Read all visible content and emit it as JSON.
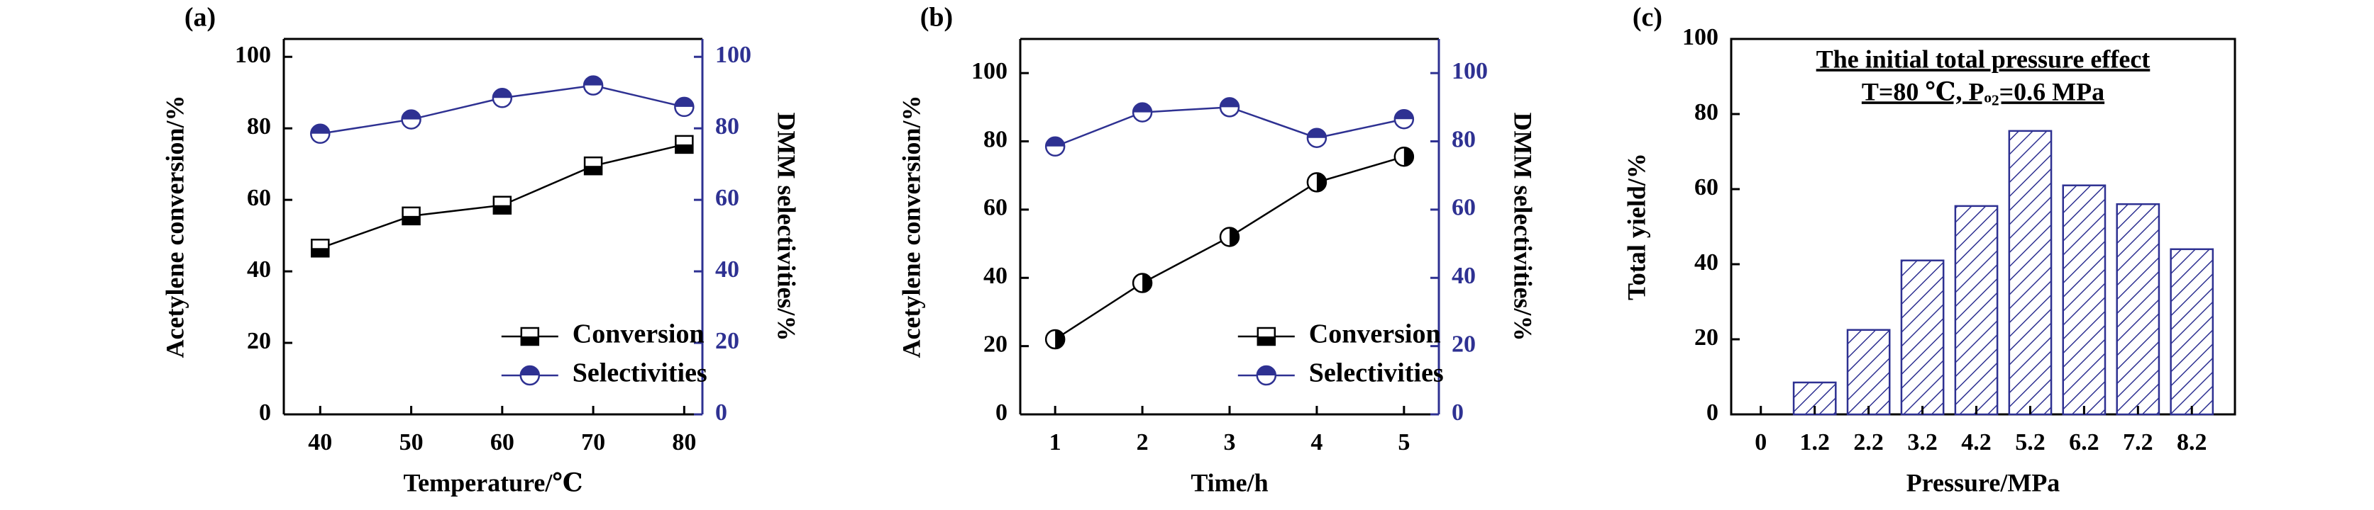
{
  "colors": {
    "black": "#000000",
    "blue": "#2e3192",
    "hatch": "#2e3192",
    "bar_fill": "#ffffff"
  },
  "chart_data": [
    {
      "type": "line",
      "panel_label": "(a)",
      "xlabel": "Temperature/℃",
      "ylabel": "Acetylene conversion/%",
      "y2label": "DMM selectivities/%",
      "x": [
        40,
        50,
        60,
        70,
        80
      ],
      "xticks": [
        "40",
        "50",
        "60",
        "70",
        "80"
      ],
      "xlim": [
        36,
        82
      ],
      "ylim": [
        0,
        105
      ],
      "yticks": [
        "0",
        "20",
        "40",
        "60",
        "80",
        "100"
      ],
      "y2lim": [
        0,
        105
      ],
      "y2ticks": [
        "0",
        "20",
        "40",
        "60",
        "80",
        "100"
      ],
      "series": [
        {
          "name": "Conversion",
          "axis": "left",
          "marker": "half-square",
          "values": [
            46.5,
            55.5,
            58.5,
            69.5,
            75.5
          ]
        },
        {
          "name": "Selectivities",
          "axis": "right",
          "marker": "half-circle",
          "values": [
            78.5,
            82.5,
            88.5,
            92,
            86
          ]
        }
      ],
      "legend": "bottom-right",
      "grid": false
    },
    {
      "type": "line",
      "panel_label": "(b)",
      "xlabel": "Time/h",
      "ylabel": "Acetylene conversion/%",
      "y2label": "DMM selectivities/%",
      "x": [
        1,
        2,
        3,
        4,
        5
      ],
      "xticks": [
        "1",
        "2",
        "3",
        "4",
        "5"
      ],
      "xlim": [
        0.6,
        5.4
      ],
      "ylim": [
        0,
        110
      ],
      "yticks": [
        "0",
        "20",
        "40",
        "60",
        "80",
        "100"
      ],
      "y2lim": [
        0,
        110
      ],
      "y2ticks": [
        "0",
        "20",
        "40",
        "60",
        "80",
        "100"
      ],
      "series": [
        {
          "name": "Conversion",
          "axis": "left",
          "marker": "half-circle-black",
          "values": [
            22,
            38.5,
            52,
            68,
            75.5
          ]
        },
        {
          "name": "Selectivities",
          "axis": "right",
          "marker": "half-circle",
          "values": [
            78.5,
            88.5,
            90,
            81,
            86.5
          ]
        }
      ],
      "legend": "bottom-right",
      "grid": false
    },
    {
      "type": "bar",
      "panel_label": "(c)",
      "title_line1": "The initial total pressure effect",
      "title_line2": "T=80 ℃, Pₒ₂=0.6 MPa",
      "xlabel": "Pressure/MPa",
      "ylabel": "Total yield/%",
      "categories": [
        "1.2",
        "2.2",
        "3.2",
        "4.2",
        "5.2",
        "6.2",
        "7.2",
        "8.2"
      ],
      "xticks": [
        "0",
        "1.2",
        "2.2",
        "3.2",
        "4.2",
        "5.2",
        "6.2",
        "7.2",
        "8.2"
      ],
      "values": [
        8.5,
        22.5,
        41,
        55.5,
        75.5,
        61,
        56,
        44
      ],
      "ylim": [
        0,
        100
      ],
      "yticks": [
        "0",
        "20",
        "40",
        "60",
        "80",
        "100"
      ],
      "bar_pattern": "diagonal-hatch",
      "grid": false
    }
  ]
}
